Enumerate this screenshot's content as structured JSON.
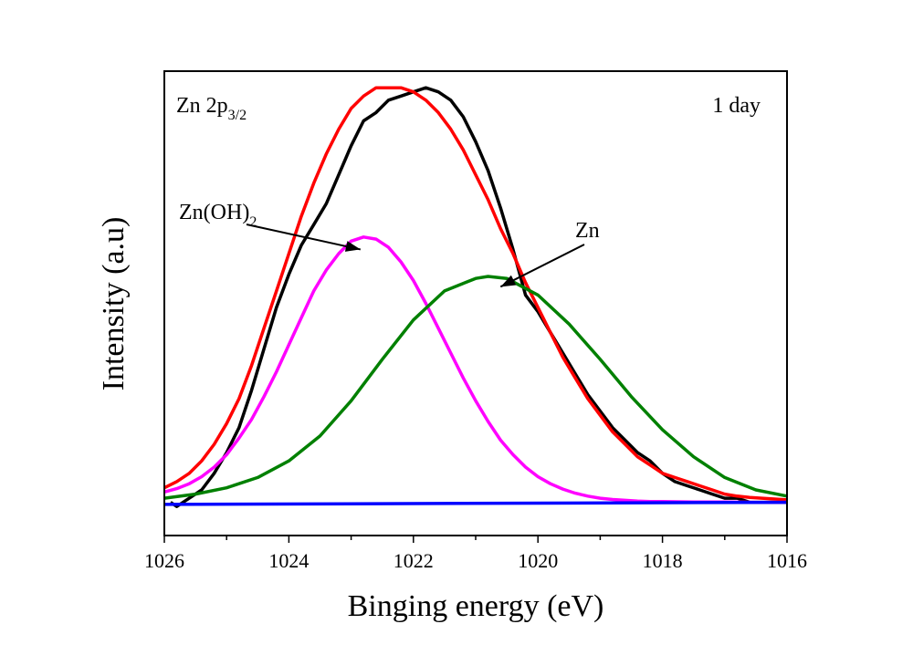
{
  "chart_data": {
    "type": "line",
    "xlabel": "Binging energy (eV)",
    "ylabel": "Intensity (a.u)",
    "xlim": [
      1026,
      1016
    ],
    "x_reversed": true,
    "ylim": [
      -0.08,
      1.04
    ],
    "x_ticks": [
      "1026",
      "1024",
      "1022",
      "1020",
      "1018",
      "1016"
    ],
    "y_ticks_shown": false,
    "grid": false,
    "legend": "none",
    "annotations": {
      "corner_left": {
        "base": "Zn 2p",
        "sub": "3/2"
      },
      "corner_right": "1 day",
      "zn_oh2": {
        "base": "Zn(OH)",
        "sub": "2",
        "arrow_to": [
          1022.85,
          0.61
        ]
      },
      "zn": {
        "text": "Zn",
        "arrow_to": [
          1020.6,
          0.52
        ]
      }
    },
    "series": [
      {
        "color": "#000000",
        "role": "raw data",
        "x": [
          1025.9,
          1025.8,
          1025.6,
          1025.4,
          1025.2,
          1025.0,
          1024.8,
          1024.6,
          1024.4,
          1024.2,
          1024.0,
          1023.8,
          1023.6,
          1023.4,
          1023.2,
          1023.0,
          1022.8,
          1022.6,
          1022.4,
          1022.2,
          1022.0,
          1021.8,
          1021.6,
          1021.4,
          1021.2,
          1021.0,
          1020.8,
          1020.6,
          1020.4,
          1020.2,
          1020.0,
          1019.8,
          1019.6,
          1019.4,
          1019.2,
          1019.0,
          1018.8,
          1018.6,
          1018.4,
          1018.2,
          1018.0,
          1017.8,
          1017.6,
          1017.4,
          1017.2,
          1017.0,
          1016.8,
          1016.6,
          1016.4,
          1016.2,
          1016.0
        ],
        "y": [
          0.0,
          -0.01,
          0.01,
          0.03,
          0.07,
          0.12,
          0.18,
          0.27,
          0.37,
          0.47,
          0.55,
          0.62,
          0.67,
          0.72,
          0.79,
          0.86,
          0.92,
          0.94,
          0.97,
          0.98,
          0.99,
          1.0,
          0.99,
          0.97,
          0.93,
          0.87,
          0.8,
          0.71,
          0.61,
          0.5,
          0.46,
          0.41,
          0.36,
          0.31,
          0.26,
          0.22,
          0.18,
          0.15,
          0.12,
          0.1,
          0.07,
          0.05,
          0.04,
          0.03,
          0.02,
          0.01,
          0.01,
          0.0,
          0.0,
          0.0,
          0.0
        ]
      },
      {
        "color": "#ff0000",
        "role": "fitted envelope",
        "x": [
          1026.0,
          1025.8,
          1025.6,
          1025.4,
          1025.2,
          1025.0,
          1024.8,
          1024.6,
          1024.4,
          1024.2,
          1024.0,
          1023.8,
          1023.6,
          1023.4,
          1023.2,
          1023.0,
          1022.8,
          1022.6,
          1022.4,
          1022.2,
          1022.0,
          1021.8,
          1021.6,
          1021.4,
          1021.2,
          1021.0,
          1020.8,
          1020.6,
          1020.4,
          1020.2,
          1020.0,
          1019.8,
          1019.6,
          1019.4,
          1019.2,
          1019.0,
          1018.8,
          1018.6,
          1018.4,
          1018.2,
          1018.0,
          1017.8,
          1017.6,
          1017.4,
          1017.2,
          1017.0,
          1016.8,
          1016.6,
          1016.4,
          1016.2,
          1016.0
        ],
        "y": [
          0.035,
          0.05,
          0.07,
          0.1,
          0.14,
          0.19,
          0.25,
          0.33,
          0.42,
          0.51,
          0.6,
          0.69,
          0.77,
          0.84,
          0.9,
          0.95,
          0.98,
          1.0,
          1.0,
          1.0,
          0.99,
          0.97,
          0.94,
          0.9,
          0.85,
          0.79,
          0.73,
          0.66,
          0.6,
          0.53,
          0.47,
          0.41,
          0.35,
          0.3,
          0.25,
          0.21,
          0.17,
          0.14,
          0.11,
          0.09,
          0.07,
          0.06,
          0.05,
          0.04,
          0.03,
          0.02,
          0.015,
          0.012,
          0.01,
          0.008,
          0.006
        ]
      },
      {
        "color": "#ff00ff",
        "role": "Zn(OH)2 component",
        "x": [
          1026.0,
          1025.8,
          1025.6,
          1025.4,
          1025.2,
          1025.0,
          1024.8,
          1024.6,
          1024.4,
          1024.2,
          1024.0,
          1023.8,
          1023.6,
          1023.4,
          1023.2,
          1023.0,
          1022.8,
          1022.6,
          1022.4,
          1022.2,
          1022.0,
          1021.8,
          1021.6,
          1021.4,
          1021.2,
          1021.0,
          1020.8,
          1020.6,
          1020.4,
          1020.2,
          1020.0,
          1019.8,
          1019.6,
          1019.4,
          1019.2,
          1019.0,
          1018.8,
          1018.6,
          1018.4,
          1018.2,
          1018.0,
          1017.5,
          1017.0,
          1016.5,
          1016.0
        ],
        "y": [
          0.025,
          0.033,
          0.045,
          0.062,
          0.085,
          0.115,
          0.155,
          0.2,
          0.255,
          0.315,
          0.38,
          0.445,
          0.51,
          0.56,
          0.6,
          0.63,
          0.64,
          0.635,
          0.615,
          0.58,
          0.535,
          0.48,
          0.42,
          0.36,
          0.3,
          0.245,
          0.195,
          0.15,
          0.115,
          0.085,
          0.062,
          0.045,
          0.032,
          0.022,
          0.015,
          0.01,
          0.007,
          0.005,
          0.003,
          0.002,
          0.002,
          0.001,
          0.001,
          0.0,
          0.0
        ]
      },
      {
        "color": "#008000",
        "role": "Zn component",
        "x": [
          1026.0,
          1025.5,
          1025.0,
          1024.5,
          1024.0,
          1023.5,
          1023.0,
          1022.5,
          1022.0,
          1021.5,
          1021.0,
          1020.8,
          1020.5,
          1020.0,
          1019.5,
          1019.0,
          1018.5,
          1018.0,
          1017.5,
          1017.0,
          1016.5,
          1016.0
        ],
        "y": [
          0.01,
          0.02,
          0.035,
          0.06,
          0.1,
          0.16,
          0.245,
          0.345,
          0.44,
          0.51,
          0.54,
          0.545,
          0.54,
          0.5,
          0.43,
          0.345,
          0.255,
          0.175,
          0.11,
          0.06,
          0.03,
          0.015
        ]
      },
      {
        "color": "#0000ff",
        "role": "baseline",
        "x": [
          1026.0,
          1016.0
        ],
        "y": [
          -0.005,
          0.0
        ]
      }
    ]
  }
}
